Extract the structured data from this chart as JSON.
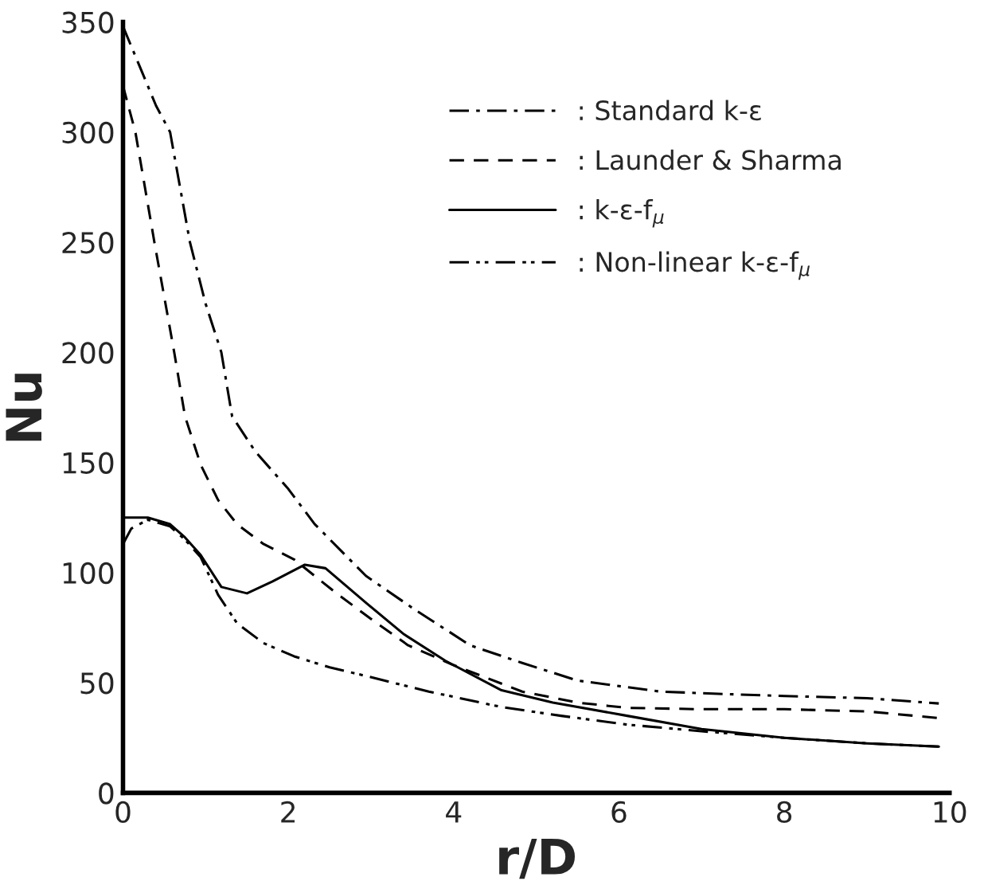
{
  "chart_data": {
    "type": "line",
    "xlabel": "r/D",
    "ylabel": "Nu",
    "xlim": [
      0,
      10
    ],
    "ylim": [
      0,
      350
    ],
    "xticks": [
      0,
      2,
      4,
      6,
      8,
      10
    ],
    "yticks": [
      0,
      50,
      100,
      150,
      200,
      250,
      300,
      350
    ],
    "grid": false,
    "legend": "top right",
    "marker": "none",
    "series": [
      {
        "name": ": Standard k-ε",
        "color": "#000000",
        "line_style": "dashdot",
        "x": [
          0,
          0.2,
          0.4,
          0.57,
          0.81,
          1.0,
          1.19,
          1.32,
          1.6,
          2.0,
          2.32,
          2.94,
          3.5,
          4.2,
          4.83,
          5.5,
          6.5,
          7.2,
          8.0,
          9.0,
          9.87
        ],
        "values": [
          348,
          330,
          312,
          300,
          250,
          222,
          200,
          171,
          155,
          138,
          122,
          98.5,
          84,
          67,
          59,
          51,
          46,
          45,
          44,
          43,
          40.6
        ]
      },
      {
        "name": ": Launder & Sharma",
        "color": "#000000",
        "line_style": "dashed",
        "x": [
          0,
          0.15,
          0.38,
          0.62,
          0.75,
          0.94,
          1.15,
          1.38,
          1.7,
          2.07,
          2.57,
          3.0,
          3.45,
          4.0,
          4.83,
          5.5,
          6.1,
          7.0,
          8.0,
          9.0,
          9.87
        ],
        "values": [
          321,
          300,
          250,
          200,
          171,
          149,
          133,
          122,
          113,
          106,
          91,
          79,
          67,
          58,
          46,
          41,
          38.6,
          38,
          38,
          37,
          34
        ]
      },
      {
        "name": ": k-ε-f$_{μ}$",
        "color": "#000000",
        "line_style": "solid",
        "x": [
          0,
          0.3,
          0.57,
          0.75,
          0.94,
          1.19,
          1.5,
          1.81,
          2.2,
          2.45,
          2.95,
          3.4,
          3.9,
          4.58,
          5.2,
          6.1,
          7.0,
          8.0,
          9.0,
          9.87
        ],
        "values": [
          125,
          125,
          122,
          116,
          108,
          93.5,
          90.6,
          96,
          103.6,
          102,
          86,
          72,
          60,
          46.6,
          41,
          35,
          29,
          25,
          22.5,
          21
        ]
      },
      {
        "name": ": Non-linear k-ε-f$_{μ}$",
        "color": "#000000",
        "line_style": "dashdotdot",
        "x": [
          0,
          0.1,
          0.3,
          0.57,
          0.75,
          0.94,
          1.15,
          1.38,
          1.7,
          2.07,
          2.5,
          2.95,
          3.7,
          4.58,
          5.3,
          6.1,
          7.0,
          8.0,
          9.0,
          9.87
        ],
        "values": [
          113,
          120,
          124,
          121,
          115,
          107,
          90,
          77,
          68,
          62,
          57,
          53,
          46,
          39,
          35,
          31,
          28,
          25,
          22.5,
          21
        ]
      }
    ]
  }
}
